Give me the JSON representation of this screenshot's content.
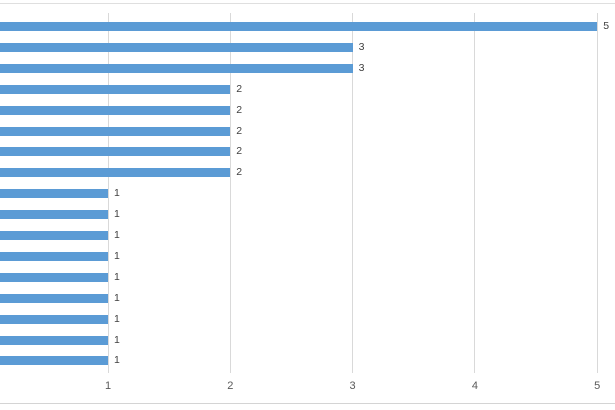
{
  "chart_data": {
    "type": "bar",
    "orientation": "horizontal",
    "title": "",
    "xlabel": "",
    "ylabel": "",
    "values": [
      5,
      3,
      3,
      2,
      2,
      2,
      2,
      2,
      1,
      1,
      1,
      1,
      1,
      1,
      1,
      1,
      1
    ],
    "data_labels": [
      "5",
      "3",
      "3",
      "2",
      "2",
      "2",
      "2",
      "2",
      "1",
      "1",
      "1",
      "1",
      "1",
      "1",
      "1",
      "1",
      "1"
    ],
    "x_ticks": [
      1,
      2,
      3,
      4,
      5
    ],
    "x_tick_labels": [
      "1",
      "2",
      "3",
      "4",
      "5"
    ],
    "xlim_visible": [
      0,
      5
    ],
    "grid": true,
    "legend": false,
    "category_axis_labels_visible": false,
    "colors": {
      "bar": "#5B9BD5",
      "gridline": "#D9D9D9",
      "data_label": "#404040",
      "tick_label": "#595959",
      "top_border": "#DFDFDF",
      "bottom_border": "#D4D4D4"
    }
  }
}
